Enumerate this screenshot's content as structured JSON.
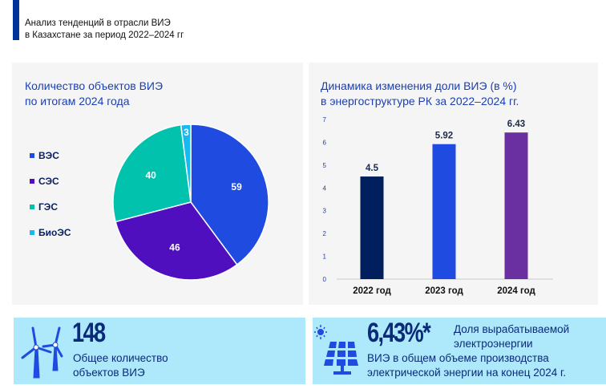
{
  "header": {
    "line1": "Анализ тенденций в отрасли ВИЭ",
    "line2": "в Казахстане за период 2022–2024 гг"
  },
  "chart_data": [
    {
      "type": "pie",
      "title": [
        "Количество объектов ВИЭ",
        "по итогам 2024 года"
      ],
      "categories": [
        "ВЭС",
        "СЭС",
        "ГЭС",
        "БиоЭС"
      ],
      "values": [
        59,
        46,
        40,
        3
      ],
      "colors": [
        "#1f4be0",
        "#4f0fbf",
        "#00c2ad",
        "#18b9f0"
      ],
      "legend": "left"
    },
    {
      "type": "bar",
      "title": [
        "Динамика изменения доли ВИЭ (в %)",
        "в энергоструктуре РК за 2022–2024 гг."
      ],
      "categories": [
        "2022 год",
        "2023 год",
        "2024 год"
      ],
      "values": [
        4.5,
        5.92,
        6.43
      ],
      "labels": [
        "4.5",
        "5.92",
        "6.43"
      ],
      "colors": [
        "#001f5c",
        "#1f4be0",
        "#6a2fa0"
      ],
      "ylim": [
        0,
        7
      ],
      "yticks": [
        "0",
        "1",
        "2",
        "3",
        "4",
        "5",
        "6",
        "7"
      ],
      "grid": false
    }
  ],
  "stats": [
    {
      "icon": "wind-turbine-icon",
      "value": "148",
      "text1": "Общее количество",
      "text2": "объектов ВИЭ"
    },
    {
      "icon": "solar-panel-icon",
      "value": "6,43%*",
      "text1": "Доля вырабатываемой",
      "text2": "электроэнергии",
      "text3": "ВИЭ в общем объеме производства",
      "text4": "электрической энергии на конец 2024 г."
    }
  ]
}
